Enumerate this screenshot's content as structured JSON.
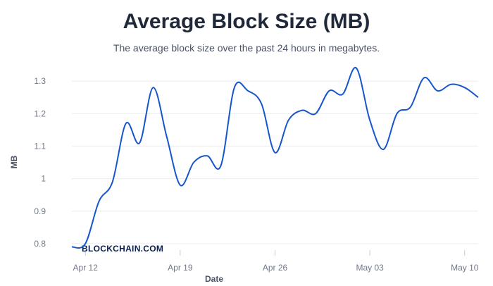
{
  "chart_data": {
    "type": "line",
    "title": "Average Block Size (MB)",
    "subtitle": "The average block size over the past 24 hours in megabytes.",
    "xlabel": "Date",
    "ylabel": "MB",
    "x_tick_labels": [
      "Apr 12",
      "Apr 19",
      "Apr 26",
      "May 03",
      "May 10"
    ],
    "y_ticks": [
      0.8,
      0.9,
      1,
      1.1,
      1.2,
      1.3
    ],
    "y_tick_labels": [
      "0.8",
      "0.9",
      "1",
      "1.1",
      "1.2",
      "1.3"
    ],
    "ylim": [
      0.75,
      1.35
    ],
    "xlim": [
      "2024-04-11",
      "2024-05-11"
    ],
    "grid": true,
    "watermark": "BLOCKCHAIN.COM",
    "line_color": "#1655cc",
    "series": [
      {
        "x": [
          "2024-04-11",
          "2024-04-12",
          "2024-04-13",
          "2024-04-14",
          "2024-04-15",
          "2024-04-16",
          "2024-04-17",
          "2024-04-18",
          "2024-04-19",
          "2024-04-20",
          "2024-04-21",
          "2024-04-22",
          "2024-04-23",
          "2024-04-24",
          "2024-04-25",
          "2024-04-26",
          "2024-04-27",
          "2024-04-28",
          "2024-04-29",
          "2024-04-30",
          "2024-05-01",
          "2024-05-02",
          "2024-05-03",
          "2024-05-04",
          "2024-05-05",
          "2024-05-06",
          "2024-05-07",
          "2024-05-08",
          "2024-05-09",
          "2024-05-10",
          "2024-05-11"
        ],
        "values": [
          0.79,
          0.8,
          0.93,
          0.99,
          1.17,
          1.11,
          1.28,
          1.13,
          0.98,
          1.05,
          1.07,
          1.04,
          1.28,
          1.27,
          1.23,
          1.08,
          1.18,
          1.21,
          1.2,
          1.27,
          1.26,
          1.34,
          1.18,
          1.09,
          1.2,
          1.22,
          1.31,
          1.27,
          1.29,
          1.28,
          1.25
        ]
      }
    ]
  }
}
